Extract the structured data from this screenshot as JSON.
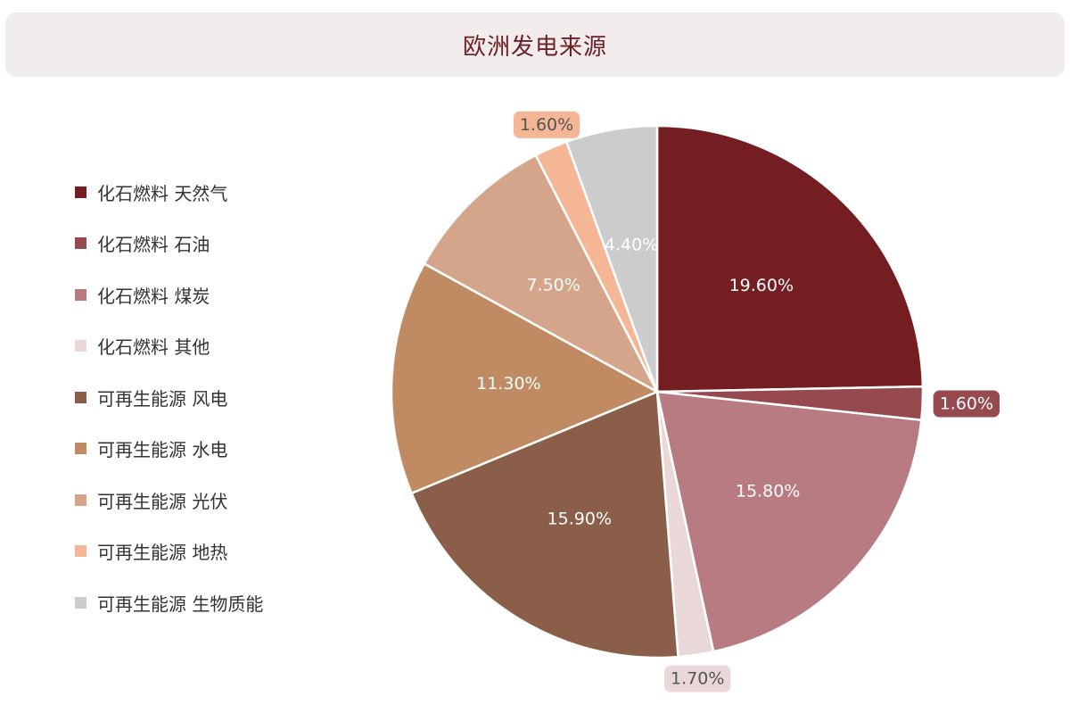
{
  "title": "欧洲发电来源",
  "chart_data": {
    "type": "pie",
    "title": "欧洲发电来源",
    "legend_position": "left",
    "slices": [
      {
        "label": "化石燃料 天然气",
        "value": 19.6,
        "display": "19.60%",
        "color": "#741e22",
        "label_style": "inside",
        "text_color": "#ffffff"
      },
      {
        "label": "化石燃料 石油",
        "value": 1.6,
        "display": "1.60%",
        "color": "#964a50",
        "label_style": "outside-badge",
        "text_color": "#ffffff"
      },
      {
        "label": "化石燃料 煤炭",
        "value": 15.8,
        "display": "15.80%",
        "color": "#b97b82",
        "label_style": "inside",
        "text_color": "#ffffff"
      },
      {
        "label": "化石燃料 其他",
        "value": 1.7,
        "display": "1.70%",
        "color": "#ead8d8",
        "label_style": "outside-badge",
        "text_color": "#555555"
      },
      {
        "label": "可再生能源 风电",
        "value": 15.9,
        "display": "15.90%",
        "color": "#8b5e49",
        "label_style": "inside",
        "text_color": "#ffffff"
      },
      {
        "label": "可再生能源 水电",
        "value": 11.3,
        "display": "11.30%",
        "color": "#c08b62",
        "label_style": "inside",
        "text_color": "#ffffff"
      },
      {
        "label": "可再生能源 光伏",
        "value": 7.5,
        "display": "7.50%",
        "color": "#d4a58b",
        "label_style": "inside",
        "text_color": "#ffffff"
      },
      {
        "label": "可再生能源 地热",
        "value": 1.6,
        "display": "1.60%",
        "color": "#f4b694",
        "label_style": "outside-badge",
        "text_color": "#555555"
      },
      {
        "label": "可再生能源 生物质能",
        "value": 4.4,
        "display": "4.40%",
        "color": "#cccccc",
        "label_style": "inside",
        "text_color": "#ffffff"
      }
    ]
  }
}
